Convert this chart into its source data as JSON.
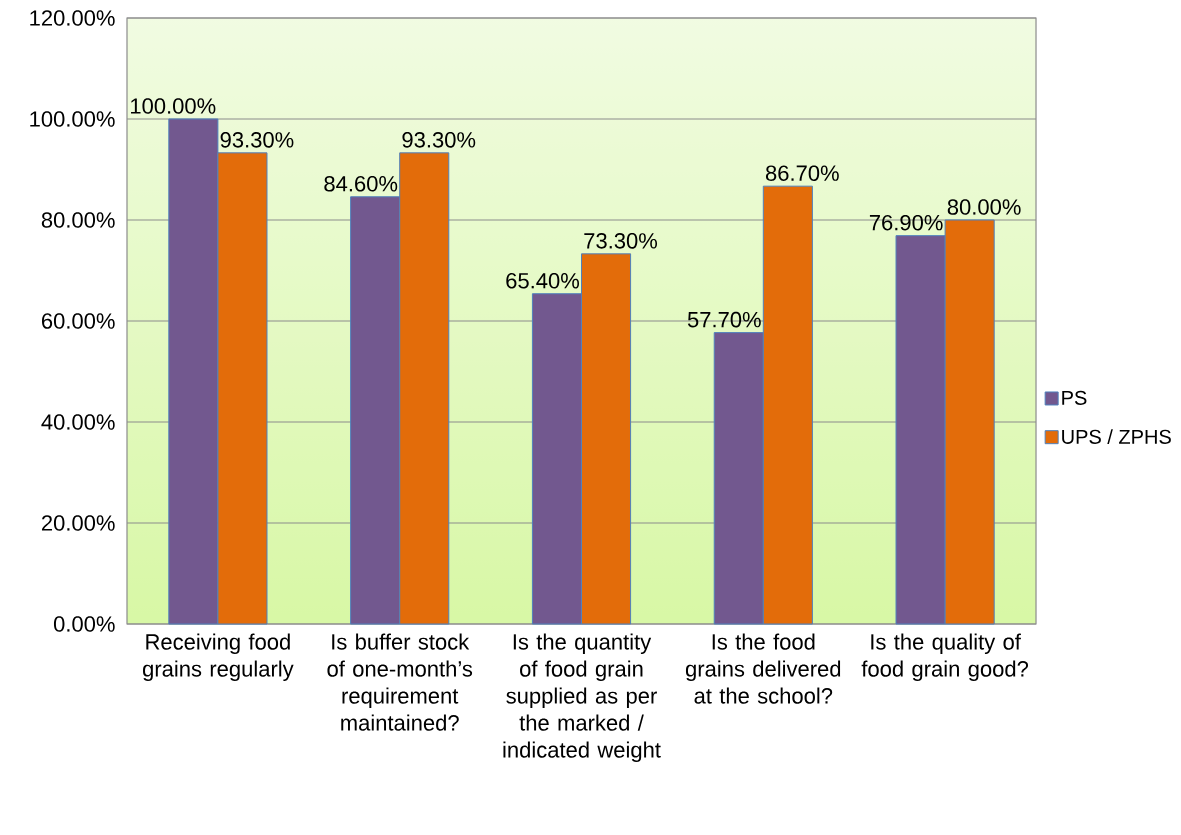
{
  "chart_data": {
    "type": "bar",
    "categories": [
      "Receiving food grains regularly",
      "Is buffer stock of one-month’s requirement maintained?",
      "Is the quantity of food grain supplied as per the marked / indicated weight",
      "Is the food grains delivered at the school?",
      "Is the quality of food grain good?"
    ],
    "series": [
      {
        "name": "PS",
        "color": "#72588f",
        "values": [
          100,
          84.6,
          65.4,
          57.7,
          76.9
        ],
        "value_labels": [
          "100.00%",
          "84.60%",
          "65.40%",
          "57.70%",
          "76.90%"
        ]
      },
      {
        "name": "UPS / ZPHS",
        "color": "#e36c0a",
        "values": [
          93.3,
          93.3,
          73.3,
          86.7,
          80
        ],
        "value_labels": [
          "93.30%",
          "93.30%",
          "73.30%",
          "86.70%",
          "80.00%"
        ]
      }
    ],
    "ylim": [
      0,
      120
    ],
    "yticks": [
      {
        "value": 0,
        "label": "0.00%"
      },
      {
        "value": 20,
        "label": "20.00%"
      },
      {
        "value": 40,
        "label": "40.00%"
      },
      {
        "value": 60,
        "label": "60.00%"
      },
      {
        "value": 80,
        "label": "80.00%"
      },
      {
        "value": 100,
        "label": "100.00%"
      },
      {
        "value": 120,
        "label": "120.00%"
      }
    ],
    "grid": "y",
    "legend": "right"
  }
}
